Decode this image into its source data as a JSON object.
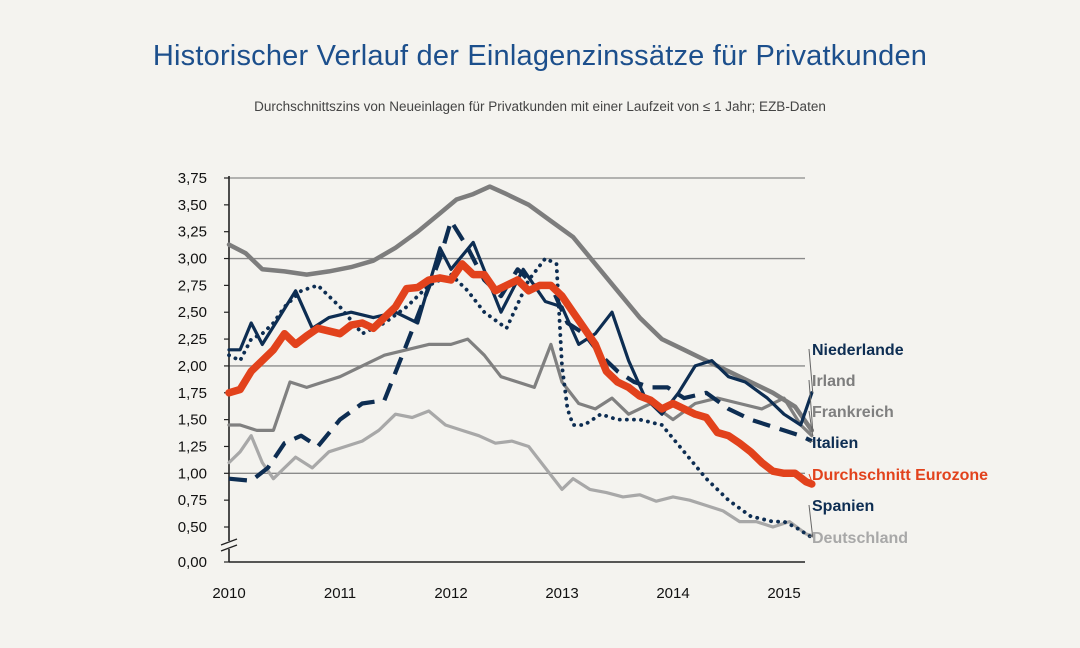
{
  "title": "Historischer Verlauf der Einlagenzinssätze für Privatkunden",
  "subtitle": "Durchschnittszins von Neueinlagen für Privatkunden mit einer Laufzeit von ≤ 1 Jahr; EZB-Daten",
  "chart_data": {
    "type": "line",
    "ylim": [
      0,
      3.75
    ],
    "xlim": [
      2010,
      2015.25
    ],
    "y_ticks": [
      "0,00",
      "0,50",
      "0,75",
      "1,00",
      "1,25",
      "1,50",
      "1,75",
      "2,00",
      "2,25",
      "2,50",
      "2,75",
      "3,00",
      "3,25",
      "3,50",
      "3,75"
    ],
    "x_ticks": [
      "2010",
      "2011",
      "2012",
      "2013",
      "2014",
      "2015"
    ],
    "series": [
      {
        "name": "Niederlande",
        "color": "#0d2d52",
        "style": "thin",
        "x": [
          2010.0,
          2010.1,
          2010.2,
          2010.3,
          2010.45,
          2010.6,
          2010.75,
          2010.9,
          2011.1,
          2011.3,
          2011.5,
          2011.7,
          2011.9,
          2012.0,
          2012.2,
          2012.45,
          2012.65,
          2012.85,
          2013.0,
          2013.15,
          2013.3,
          2013.45,
          2013.6,
          2013.75,
          2013.9,
          2014.05,
          2014.2,
          2014.35,
          2014.5,
          2014.65,
          2014.85,
          2015.0,
          2015.15,
          2015.25
        ],
        "y": [
          2.15,
          2.15,
          2.4,
          2.2,
          2.45,
          2.7,
          2.35,
          2.45,
          2.5,
          2.45,
          2.5,
          2.4,
          3.1,
          2.9,
          3.15,
          2.5,
          2.9,
          2.6,
          2.55,
          2.2,
          2.3,
          2.5,
          2.05,
          1.7,
          1.55,
          1.75,
          2.0,
          2.05,
          1.9,
          1.85,
          1.7,
          1.55,
          1.45,
          1.75
        ]
      },
      {
        "name": "Irland",
        "color": "#7d7d7d",
        "style": "thick",
        "x": [
          2010.0,
          2010.15,
          2010.3,
          2010.5,
          2010.7,
          2010.9,
          2011.1,
          2011.3,
          2011.5,
          2011.7,
          2011.9,
          2012.05,
          2012.2,
          2012.35,
          2012.5,
          2012.7,
          2012.9,
          2013.1,
          2013.3,
          2013.5,
          2013.7,
          2013.9,
          2014.1,
          2014.3,
          2014.5,
          2014.7,
          2014.9,
          2015.1,
          2015.25
        ],
        "y": [
          3.13,
          3.05,
          2.9,
          2.88,
          2.85,
          2.88,
          2.92,
          2.98,
          3.1,
          3.25,
          3.42,
          3.55,
          3.6,
          3.67,
          3.6,
          3.5,
          3.35,
          3.2,
          2.95,
          2.7,
          2.45,
          2.25,
          2.15,
          2.05,
          1.95,
          1.85,
          1.75,
          1.62,
          1.4
        ]
      },
      {
        "name": "Frankreich",
        "color": "#808080",
        "style": "thin",
        "x": [
          2010.0,
          2010.1,
          2010.25,
          2010.4,
          2010.55,
          2010.7,
          2010.85,
          2011.0,
          2011.2,
          2011.4,
          2011.6,
          2011.8,
          2012.0,
          2012.15,
          2012.3,
          2012.45,
          2012.6,
          2012.75,
          2012.9,
          2013.0,
          2013.15,
          2013.3,
          2013.45,
          2013.6,
          2013.8,
          2014.0,
          2014.2,
          2014.4,
          2014.6,
          2014.8,
          2015.0,
          2015.15,
          2015.25
        ],
        "y": [
          1.45,
          1.45,
          1.4,
          1.4,
          1.85,
          1.8,
          1.85,
          1.9,
          2.0,
          2.1,
          2.15,
          2.2,
          2.2,
          2.25,
          2.1,
          1.9,
          1.85,
          1.8,
          2.2,
          1.85,
          1.65,
          1.6,
          1.7,
          1.55,
          1.65,
          1.5,
          1.65,
          1.7,
          1.65,
          1.6,
          1.7,
          1.45,
          1.35
        ]
      },
      {
        "name": "Italien",
        "color": "#0d2d52",
        "style": "dashed",
        "x": [
          2010.0,
          2010.2,
          2010.35,
          2010.5,
          2010.65,
          2010.8,
          2011.0,
          2011.2,
          2011.4,
          2011.6,
          2011.75,
          2011.9,
          2012.0,
          2012.15,
          2012.3,
          2012.45,
          2012.6,
          2012.75,
          2012.9,
          2013.05,
          2013.2,
          2013.35,
          2013.5,
          2013.65,
          2013.8,
          2013.95,
          2014.1,
          2014.3,
          2014.5,
          2014.7,
          2014.85,
          2015.0,
          2015.15,
          2015.25
        ],
        "y": [
          0.95,
          0.93,
          1.05,
          1.28,
          1.35,
          1.25,
          1.5,
          1.65,
          1.68,
          2.2,
          2.6,
          3.0,
          3.35,
          3.1,
          2.8,
          2.65,
          2.9,
          2.75,
          2.75,
          2.4,
          2.3,
          2.1,
          1.95,
          1.85,
          1.8,
          1.8,
          1.7,
          1.75,
          1.6,
          1.5,
          1.45,
          1.4,
          1.35,
          1.3
        ]
      },
      {
        "name": "Durchschnitt Eurozone",
        "color": "#e2421c",
        "style": "bold",
        "x": [
          2010.0,
          2010.1,
          2010.2,
          2010.3,
          2010.4,
          2010.5,
          2010.6,
          2010.7,
          2010.8,
          2011.0,
          2011.1,
          2011.2,
          2011.3,
          2011.4,
          2011.5,
          2011.6,
          2011.7,
          2011.8,
          2011.9,
          2012.0,
          2012.1,
          2012.2,
          2012.3,
          2012.4,
          2012.5,
          2012.6,
          2012.7,
          2012.8,
          2012.9,
          2013.0,
          2013.1,
          2013.2,
          2013.3,
          2013.4,
          2013.5,
          2013.6,
          2013.7,
          2013.8,
          2013.9,
          2014.0,
          2014.1,
          2014.2,
          2014.3,
          2014.4,
          2014.5,
          2014.6,
          2014.7,
          2014.8,
          2014.9,
          2015.0,
          2015.1,
          2015.2,
          2015.25
        ],
        "y": [
          1.75,
          1.78,
          1.95,
          2.05,
          2.15,
          2.3,
          2.2,
          2.28,
          2.35,
          2.3,
          2.38,
          2.4,
          2.35,
          2.45,
          2.55,
          2.72,
          2.73,
          2.8,
          2.82,
          2.8,
          2.95,
          2.85,
          2.85,
          2.7,
          2.75,
          2.8,
          2.7,
          2.75,
          2.75,
          2.65,
          2.5,
          2.35,
          2.2,
          1.95,
          1.85,
          1.8,
          1.72,
          1.68,
          1.6,
          1.65,
          1.6,
          1.55,
          1.52,
          1.38,
          1.35,
          1.28,
          1.2,
          1.1,
          1.02,
          1.0,
          1.0,
          0.92,
          0.9
        ]
      },
      {
        "name": "Spanien",
        "color": "#0d2d52",
        "style": "dotted",
        "x": [
          2010.0,
          2010.1,
          2010.2,
          2010.3,
          2010.4,
          2010.5,
          2010.65,
          2010.8,
          2011.0,
          2011.2,
          2011.4,
          2011.6,
          2011.8,
          2012.0,
          2012.15,
          2012.3,
          2012.5,
          2012.7,
          2012.85,
          2012.95,
          2013.0,
          2013.05,
          2013.1,
          2013.2,
          2013.35,
          2013.5,
          2013.7,
          2013.9,
          2014.1,
          2014.3,
          2014.5,
          2014.7,
          2014.9,
          2015.0,
          2015.1,
          2015.2,
          2015.25
        ],
        "y": [
          2.1,
          2.05,
          2.25,
          2.3,
          2.4,
          2.55,
          2.7,
          2.75,
          2.55,
          2.3,
          2.4,
          2.55,
          2.75,
          2.85,
          2.7,
          2.5,
          2.35,
          2.8,
          3.0,
          2.95,
          2.0,
          1.6,
          1.45,
          1.45,
          1.55,
          1.5,
          1.5,
          1.45,
          1.2,
          0.95,
          0.75,
          0.6,
          0.55,
          0.55,
          0.5,
          0.4,
          0.35
        ]
      },
      {
        "name": "Deutschland",
        "color": "#a8a8a8",
        "style": "thin",
        "x": [
          2010.0,
          2010.1,
          2010.2,
          2010.3,
          2010.4,
          2010.5,
          2010.6,
          2010.75,
          2010.9,
          2011.05,
          2011.2,
          2011.35,
          2011.5,
          2011.65,
          2011.8,
          2011.95,
          2012.1,
          2012.25,
          2012.4,
          2012.55,
          2012.7,
          2012.85,
          2013.0,
          2013.1,
          2013.25,
          2013.4,
          2013.55,
          2013.7,
          2013.85,
          2014.0,
          2014.15,
          2014.3,
          2014.45,
          2014.6,
          2014.75,
          2014.9,
          2015.05,
          2015.2,
          2015.25
        ],
        "y": [
          1.1,
          1.2,
          1.35,
          1.1,
          0.95,
          1.05,
          1.15,
          1.05,
          1.2,
          1.25,
          1.3,
          1.4,
          1.55,
          1.52,
          1.58,
          1.45,
          1.4,
          1.35,
          1.28,
          1.3,
          1.25,
          1.05,
          0.85,
          0.95,
          0.85,
          0.82,
          0.78,
          0.8,
          0.74,
          0.78,
          0.75,
          0.7,
          0.65,
          0.55,
          0.55,
          0.5,
          0.55,
          0.4,
          0.38
        ]
      }
    ],
    "legend": "right, labels at line ends"
  }
}
